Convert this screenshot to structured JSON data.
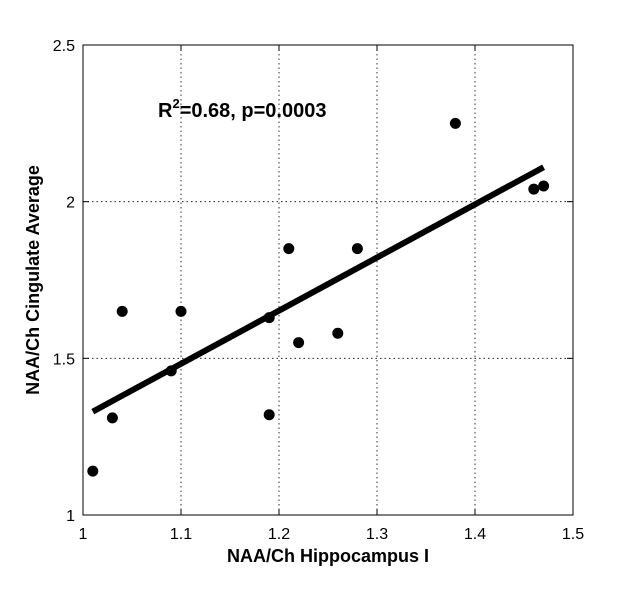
{
  "chart_data": {
    "type": "scatter",
    "xlabel": "NAA/Ch Hippocampus I",
    "ylabel": "NAA/Ch Cingulate Average",
    "xlim": [
      1,
      1.5
    ],
    "ylim": [
      1,
      2.5
    ],
    "x_ticks": [
      "1",
      "1.1",
      "1.2",
      "1.3",
      "1.4",
      "1.5"
    ],
    "y_ticks": [
      "1",
      "1.5",
      "2",
      "2.5"
    ],
    "grid": true,
    "annotation": {
      "base": "R",
      "superscript": "2",
      "text": "=0.68,  p=0.0003"
    },
    "points": [
      {
        "x": 1.01,
        "y": 1.14
      },
      {
        "x": 1.03,
        "y": 1.31
      },
      {
        "x": 1.04,
        "y": 1.65
      },
      {
        "x": 1.09,
        "y": 1.46
      },
      {
        "x": 1.1,
        "y": 1.65
      },
      {
        "x": 1.19,
        "y": 1.63
      },
      {
        "x": 1.19,
        "y": 1.32
      },
      {
        "x": 1.21,
        "y": 1.85
      },
      {
        "x": 1.22,
        "y": 1.55
      },
      {
        "x": 1.26,
        "y": 1.58
      },
      {
        "x": 1.28,
        "y": 1.85
      },
      {
        "x": 1.38,
        "y": 2.25
      },
      {
        "x": 1.46,
        "y": 2.04
      },
      {
        "x": 1.47,
        "y": 2.05
      }
    ],
    "fit_line": {
      "x": [
        1.01,
        1.47
      ],
      "y": [
        1.33,
        2.11
      ]
    }
  }
}
